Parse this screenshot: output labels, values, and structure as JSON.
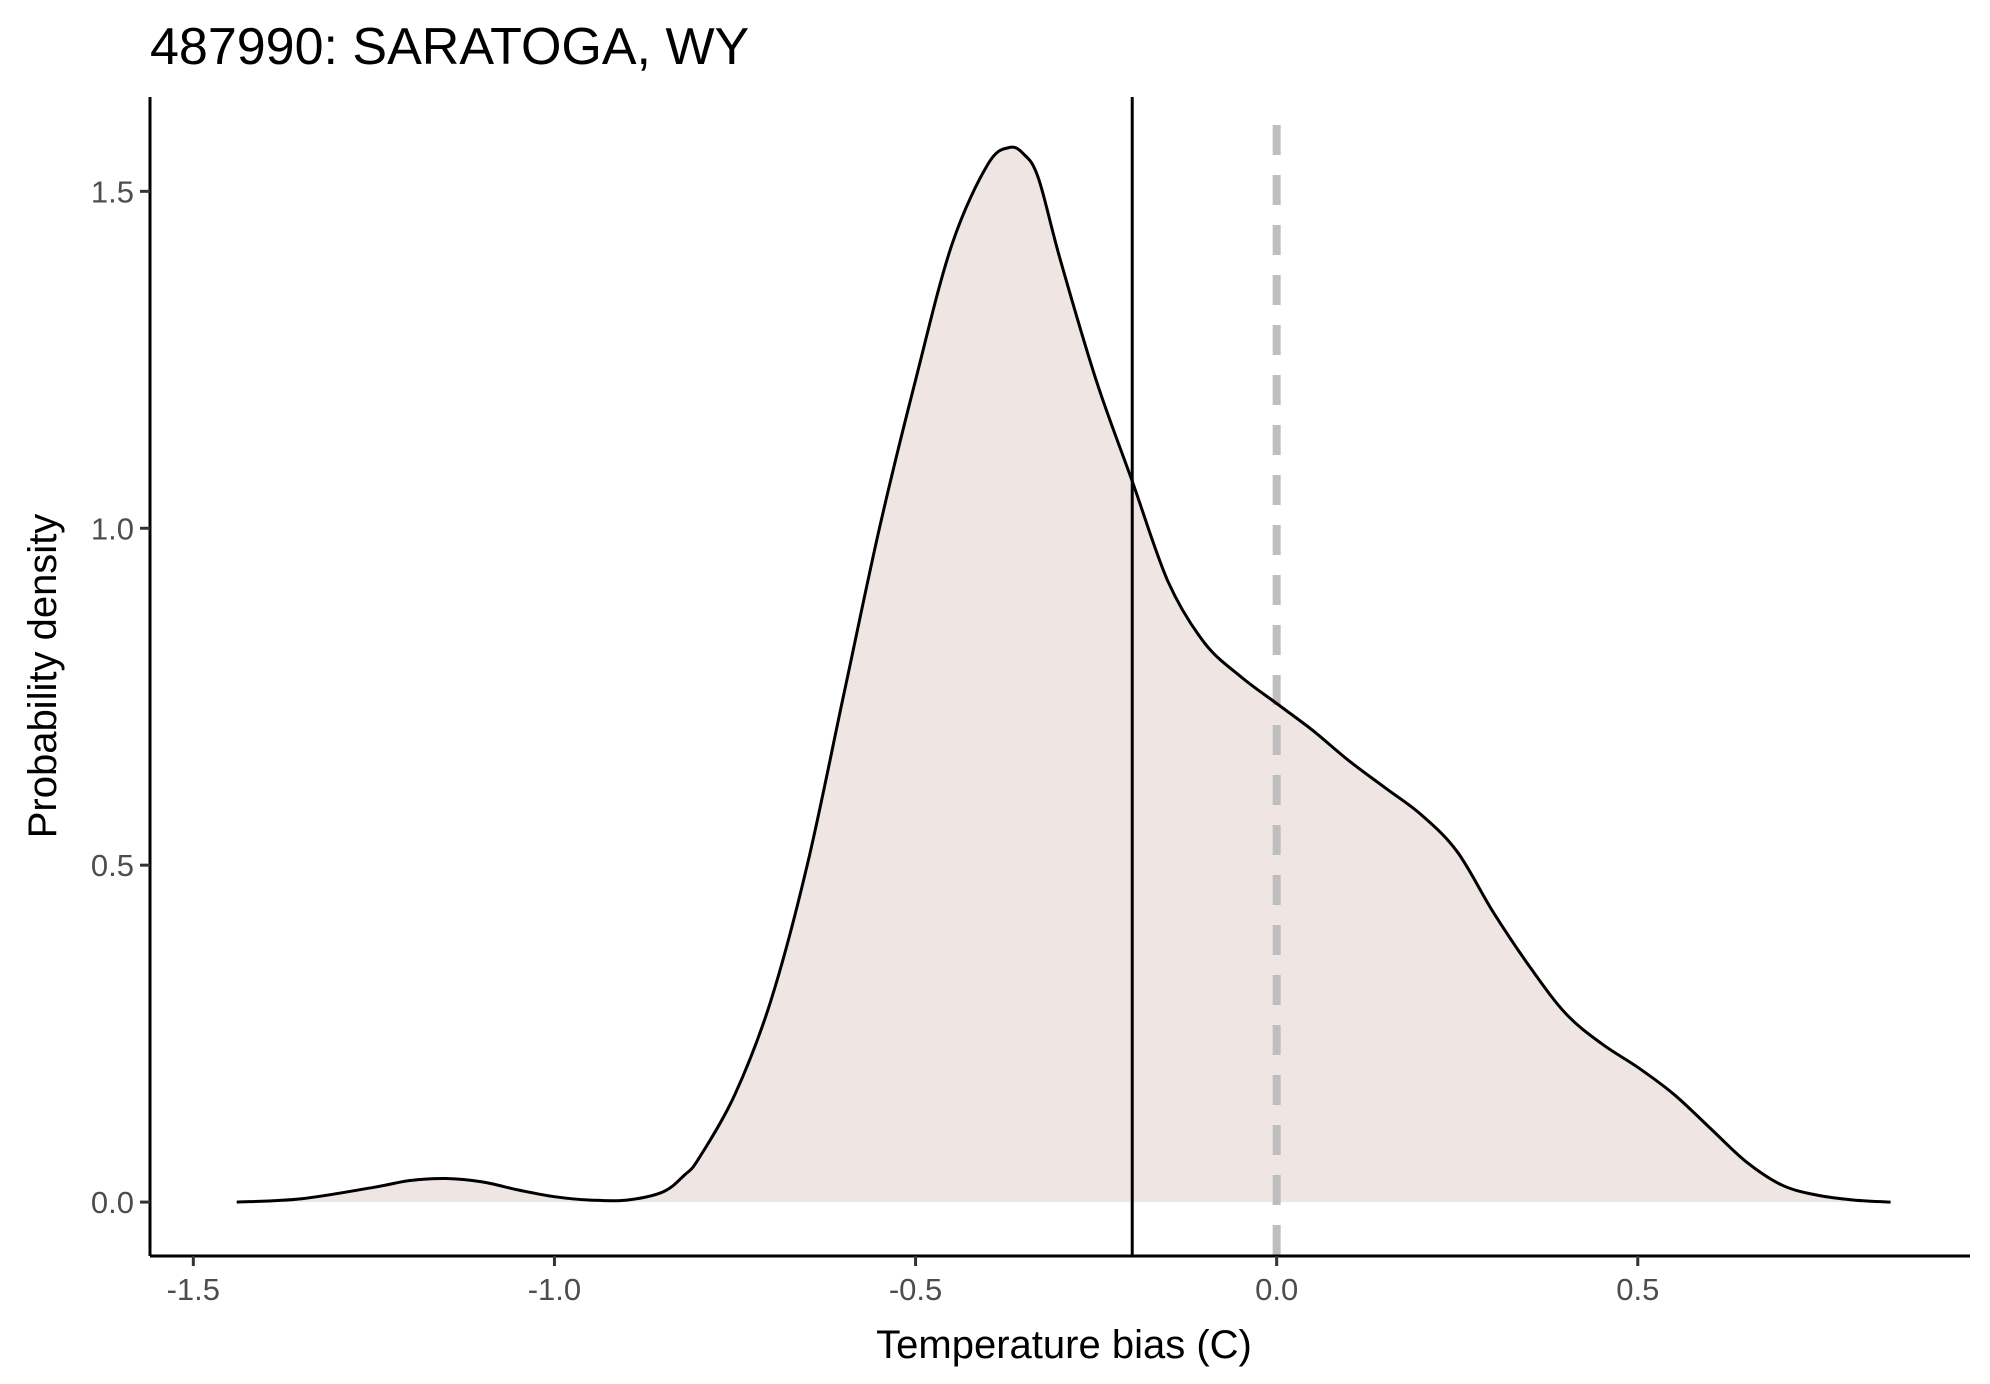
{
  "chart_data": {
    "type": "area",
    "title": "487990: SARATOGA, WY",
    "xlabel": "Temperature bias (C)",
    "ylabel": "Probability density",
    "xlim": [
      -1.56,
      0.96
    ],
    "ylim": [
      -0.08,
      1.64
    ],
    "x_ticks": [
      -1.5,
      -1.0,
      -0.5,
      0.0,
      0.5
    ],
    "x_tick_labels": [
      "-1.5",
      "-1.0",
      "-0.5",
      "0.0",
      "0.5"
    ],
    "y_ticks": [
      0.0,
      0.5,
      1.0,
      1.5
    ],
    "y_tick_labels": [
      "0.0",
      "0.5",
      "1.0",
      "1.5"
    ],
    "grid": false,
    "fill_color": "#efe5e2",
    "line_color": "#000000",
    "reference_lines": [
      {
        "x": -0.2,
        "style": "solid",
        "color": "#000000"
      },
      {
        "x": 0.0,
        "style": "dashed",
        "color": "#bebebe"
      }
    ],
    "series": [
      {
        "x": [
          -1.44,
          -1.35,
          -1.25,
          -1.2,
          -1.15,
          -1.1,
          -1.05,
          -1.0,
          -0.95,
          -0.9,
          -0.85,
          -0.82,
          -0.8,
          -0.75,
          -0.7,
          -0.65,
          -0.6,
          -0.55,
          -0.5,
          -0.45,
          -0.4,
          -0.37,
          -0.35,
          -0.33,
          -0.3,
          -0.25,
          -0.2,
          -0.15,
          -0.1,
          -0.05,
          0.0,
          0.05,
          0.1,
          0.15,
          0.2,
          0.25,
          0.3,
          0.35,
          0.4,
          0.45,
          0.5,
          0.55,
          0.6,
          0.65,
          0.7,
          0.75,
          0.8,
          0.85
        ],
        "y": [
          0.0,
          0.005,
          0.022,
          0.032,
          0.035,
          0.03,
          0.018,
          0.008,
          0.003,
          0.003,
          0.015,
          0.04,
          0.065,
          0.16,
          0.3,
          0.5,
          0.75,
          1.0,
          1.22,
          1.42,
          1.54,
          1.565,
          1.555,
          1.52,
          1.4,
          1.22,
          1.07,
          0.92,
          0.83,
          0.78,
          0.74,
          0.7,
          0.655,
          0.615,
          0.575,
          0.52,
          0.43,
          0.35,
          0.28,
          0.235,
          0.2,
          0.16,
          0.11,
          0.06,
          0.025,
          0.01,
          0.003,
          0.0
        ]
      }
    ]
  }
}
